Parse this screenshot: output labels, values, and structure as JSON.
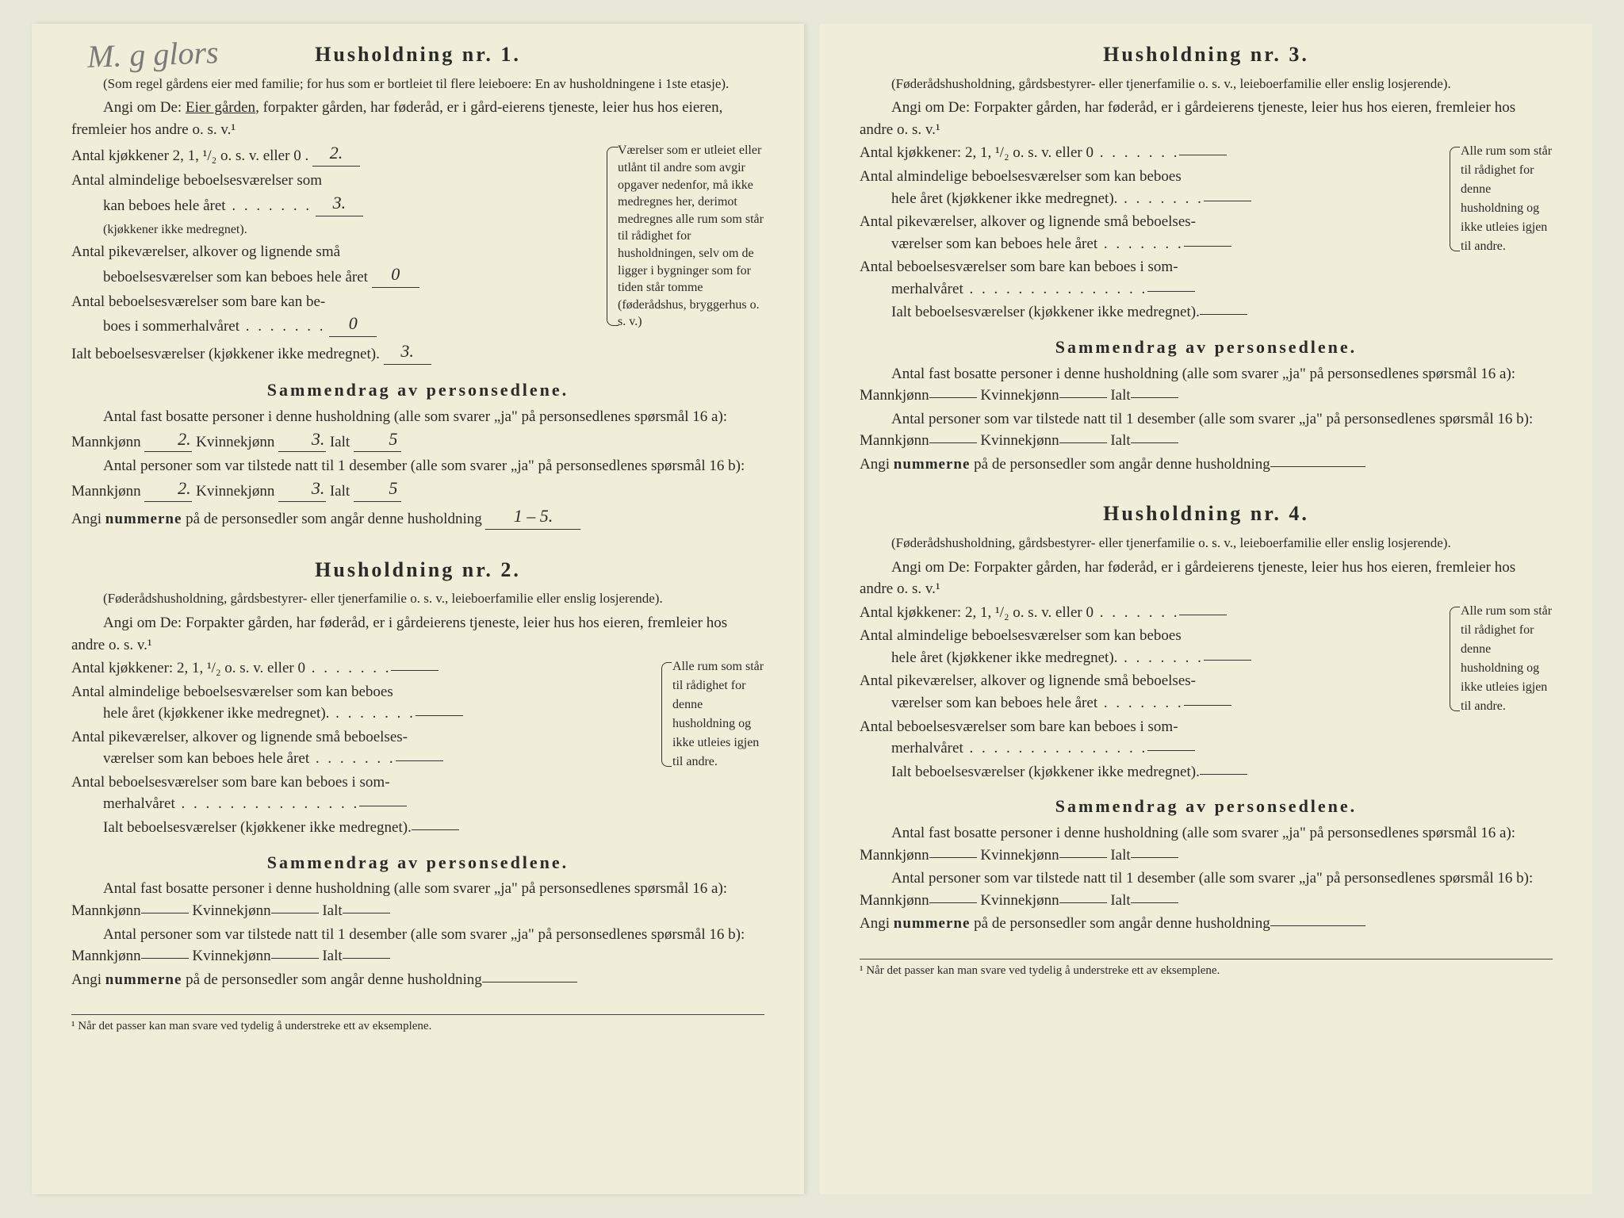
{
  "handwriting_top": "M. g glors",
  "footnote": "¹  Når det passer kan man svare ved tydelig å understreke ett av eksemplene.",
  "hh1": {
    "title": "Husholdning nr. 1.",
    "sub": "(Som regel gårdens eier med familie; for hus som er bortleiet til flere leieboere: En av husholdningene i 1ste etasje).",
    "angi_pre": "Angi om De: ",
    "angi_u": "Eier gården",
    "angi_rest": ", forpakter gården, har føderåd, er i gård-eierens tjeneste, leier hus hos eieren, fremleier hos andre o. s. v.¹",
    "l1": "Antal kjøkkener 2, 1, ¹/₂ o. s. v. eller 0  .",
    "l1_val": "2.",
    "side1": "Værelser som er utleiet eller utlånt til andre som avgir opgaver nedenfor, må ikke medregnes her, derimot medregnes alle rum som står til rådighet for husholdningen, selv om de ligger i bygninger som for tiden står tomme (føderådshus, bryggerhus o. s. v.)",
    "l2a": "Antal almindelige beboelsesværelser som",
    "l2b": "kan beboes hele året",
    "l2c": "(kjøkkener ikke medregnet).",
    "l2_val": "3.",
    "l3a": "Antal pikeværelser, alkover og lignende små",
    "l3b": "beboelsesværelser som kan beboes hele året",
    "l3_val": "0",
    "l4a": "Antal beboelsesværelser som bare kan be-",
    "l4b": "boes i sommerhalvåret",
    "l4_val": "0",
    "l5": "Ialt beboelsesværelser (kjøkkener ikke medregnet).",
    "l5_val": "3.",
    "summary_title": "Sammendrag av personsedlene.",
    "s1": "Antal fast bosatte personer i denne husholdning (alle som svarer „ja\" på personsedlenes spørsmål 16 a): Mannkjønn",
    "s1_m": "2.",
    "s1_kv_lbl": " Kvinnekjønn",
    "s1_k": "3.",
    "s1_i_lbl": " Ialt",
    "s1_i": "5",
    "s2": "Antal personer som var tilstede natt til 1 desember (alle som svarer „ja\" på personsedlenes spørsmål 16 b): Mannkjønn",
    "s2_m": "2.",
    "s2_k": "3.",
    "s2_i": "5",
    "s3_lbl": "Angi ",
    "s3_b": "nummerne",
    "s3_rest": " på de personsedler som angår denne husholdning",
    "s3_val": "1 – 5."
  },
  "hh_generic_sub": "(Føderådshusholdning, gårdsbestyrer- eller tjenerfamilie o. s. v., leieboerfamilie eller enslig losjerende).",
  "hh_generic_angi": "Angi om De: Forpakter gården, har føderåd, er i gårdeierens tjeneste, leier hus hos eieren, fremleier hos andre o. s. v.¹",
  "hh_g": {
    "l1": "Antal kjøkkener: 2, 1, ¹/₂ o. s. v. eller 0",
    "l2a": "Antal almindelige beboelsesværelser som kan beboes",
    "l2b": "hele året (kjøkkener ikke medregnet).",
    "l3a": "Antal pikeværelser, alkover og lignende små beboelses-",
    "l3b": "værelser som kan beboes hele året",
    "l4a": "Antal beboelsesværelser som bare kan beboes i som-",
    "l4b": "merhalvåret",
    "l5": "Ialt beboelsesværelser (kjøkkener ikke medregnet).",
    "side": "Alle rum som står til rådighet for denne husholdning og ikke utleies igjen til andre."
  },
  "hh2_title": "Husholdning nr. 2.",
  "hh3_title": "Husholdning nr. 3.",
  "hh4_title": "Husholdning nr. 4.",
  "summ": {
    "title": "Sammendrag av personsedlene.",
    "s1a": "Antal fast bosatte personer i denne husholdning (alle som svarer „ja\" på personsedlenes spørsmål 16 a): Mannkjønn",
    "kv": " Kvinnekjønn",
    "ialt": " Ialt",
    "s2a": "Antal personer som var tilstede natt til 1 desember (alle som svarer „ja\" på personsedlenes spørsmål 16 b): Mannkjønn",
    "s3a": "Angi ",
    "s3b": "nummerne",
    "s3c": " på de personsedler som angår denne husholdning"
  }
}
